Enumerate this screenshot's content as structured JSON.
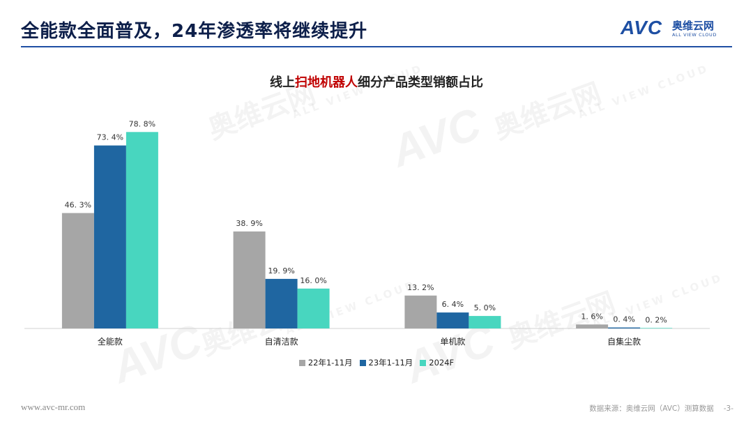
{
  "header": {
    "title": "全能款全面普及，24年渗透率将继续提升",
    "logo_mark": "AVC",
    "logo_cn": "奥维云网",
    "logo_en": "ALL VIEW CLOUD"
  },
  "watermark": {
    "mark": "AVC",
    "cn": "奥维云网",
    "en": "ALL VIEW CLOUD"
  },
  "colors": {
    "brand": "#1e4fa3",
    "title": "#0d1f4a",
    "highlight": "#c00000"
  },
  "chart_data": {
    "type": "bar",
    "title_parts": [
      "线上",
      "扫地机器人",
      "细分产品类型销额占比"
    ],
    "categories": [
      "全能款",
      "自清洁款",
      "单机款",
      "自集尘款"
    ],
    "series": [
      {
        "name": "22年1-11月",
        "color": "#a6a6a6",
        "values": [
          46.3,
          38.9,
          13.2,
          1.6
        ],
        "labels": [
          "46. 3%",
          "38. 9%",
          "13. 2%",
          "1. 6%"
        ]
      },
      {
        "name": "23年1-11月",
        "color": "#1f66a1",
        "values": [
          73.4,
          19.9,
          6.4,
          0.4
        ],
        "labels": [
          "73. 4%",
          "19. 9%",
          "6. 4%",
          "0. 4%"
        ]
      },
      {
        "name": "2024F",
        "color": "#48d6bf",
        "values": [
          78.8,
          16.0,
          5.0,
          0.2
        ],
        "labels": [
          "78. 8%",
          "16. 0%",
          "5. 0%",
          "0. 2%"
        ]
      }
    ],
    "unit": "%",
    "ylim": [
      0,
      80
    ],
    "grid": false,
    "legend_position": "bottom"
  },
  "footer": {
    "website": "www.avc-mr.com",
    "source": "数据来源：奥维云网（AVC）测算数据",
    "page": "-3-"
  }
}
